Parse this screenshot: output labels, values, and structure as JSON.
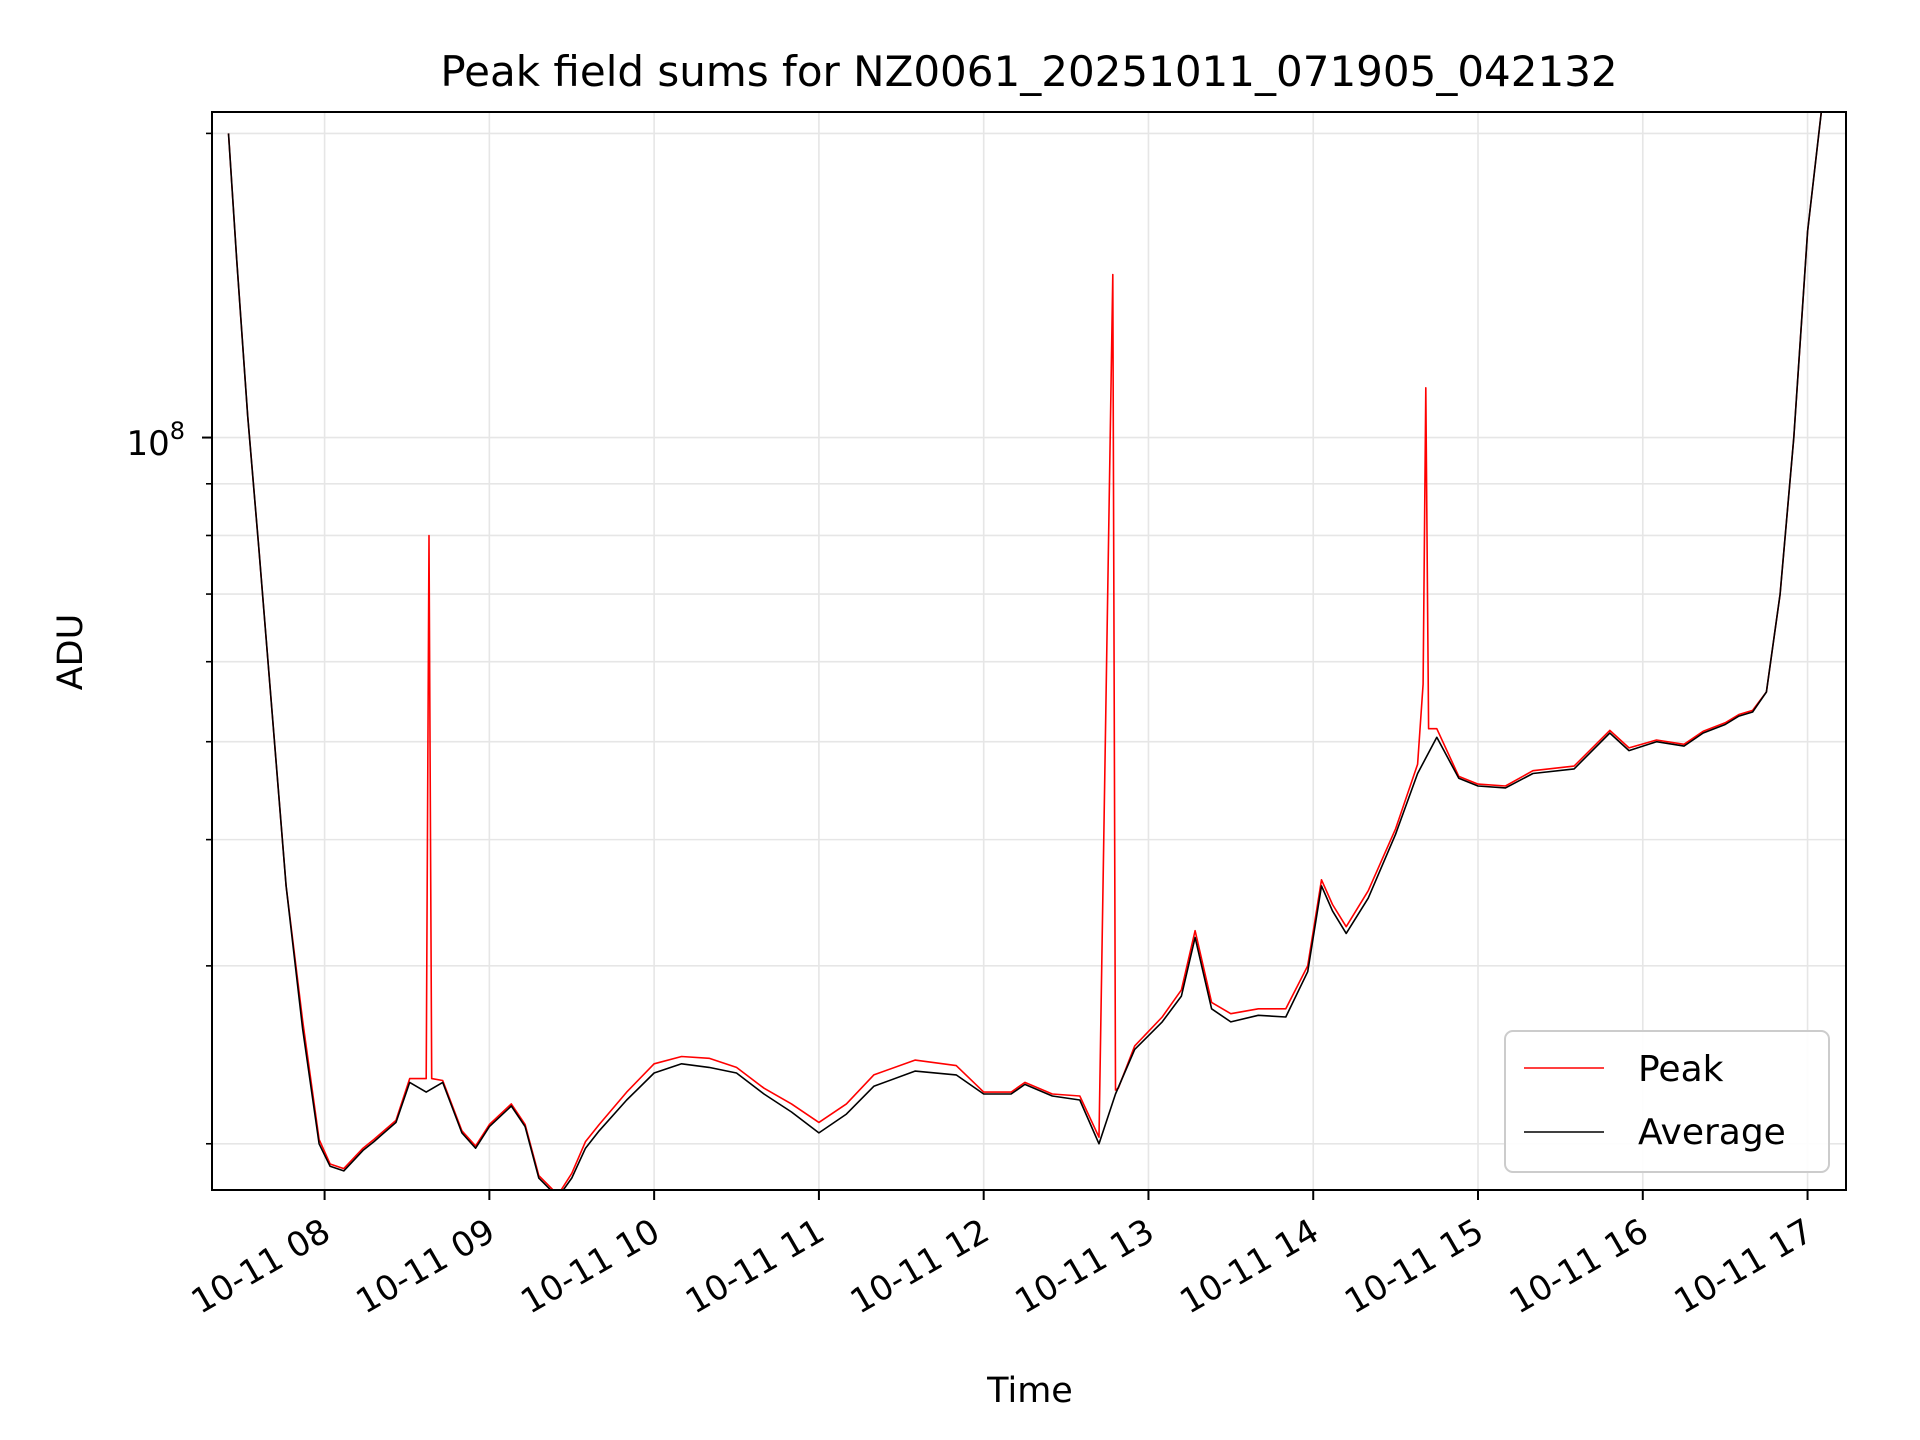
{
  "chart_data": {
    "type": "line",
    "title": "Peak field sums for NZ0061_20251011_071905_042132",
    "xlabel": "Time",
    "ylabel": "ADU",
    "y_scale": "log",
    "xlim": [
      "2025-10-11 07:19",
      "2025-10-11 17:14"
    ],
    "ylim": [
      18000000,
      210000000
    ],
    "x_tick_labels": [
      "10-11 08",
      "10-11 09",
      "10-11 10",
      "10-11 11",
      "10-11 12",
      "10-11 13",
      "10-11 14",
      "10-11 15",
      "10-11 16",
      "10-11 17"
    ],
    "x_ticks": [
      "2025-10-11 08:00",
      "2025-10-11 09:00",
      "2025-10-11 10:00",
      "2025-10-11 11:00",
      "2025-10-11 12:00",
      "2025-10-11 13:00",
      "2025-10-11 14:00",
      "2025-10-11 15:00",
      "2025-10-11 16:00",
      "2025-10-11 17:00"
    ],
    "y_major_tick_labels": [
      "10",
      "8"
    ],
    "y_major_ticks": [
      100000000
    ],
    "y_minor_ticks": [
      20000000,
      30000000,
      40000000,
      50000000,
      60000000,
      70000000,
      80000000,
      90000000,
      200000000
    ],
    "grid": true,
    "legend": "lower-right",
    "colors": {
      "peak": "#ff0000",
      "average": "#000000",
      "grid": "#e6e6e6"
    },
    "series": [
      {
        "name": "Average",
        "x": [
          "2025-10-11 07:25",
          "2025-10-11 07:28",
          "2025-10-11 07:32",
          "2025-10-11 07:36",
          "2025-10-11 07:41",
          "2025-10-11 07:46",
          "2025-10-11 07:52",
          "2025-10-11 07:58",
          "2025-10-11 08:02",
          "2025-10-11 08:07",
          "2025-10-11 08:14",
          "2025-10-11 08:18",
          "2025-10-11 08:26",
          "2025-10-11 08:31",
          "2025-10-11 08:37",
          "2025-10-11 08:43",
          "2025-10-11 08:50",
          "2025-10-11 08:55",
          "2025-10-11 09:00",
          "2025-10-11 09:08",
          "2025-10-11 09:13",
          "2025-10-11 09:18",
          "2025-10-11 09:25",
          "2025-10-11 09:30",
          "2025-10-11 09:35",
          "2025-10-11 09:40",
          "2025-10-11 09:50",
          "2025-10-11 10:00",
          "2025-10-11 10:10",
          "2025-10-11 10:20",
          "2025-10-11 10:30",
          "2025-10-11 10:40",
          "2025-10-11 10:50",
          "2025-10-11 11:00",
          "2025-10-11 11:10",
          "2025-10-11 11:20",
          "2025-10-11 11:35",
          "2025-10-11 11:50",
          "2025-10-11 12:00",
          "2025-10-11 12:10",
          "2025-10-11 12:15",
          "2025-10-11 12:25",
          "2025-10-11 12:35",
          "2025-10-11 12:42",
          "2025-10-11 12:48",
          "2025-10-11 12:55",
          "2025-10-11 13:05",
          "2025-10-11 13:12",
          "2025-10-11 13:17",
          "2025-10-11 13:23",
          "2025-10-11 13:30",
          "2025-10-11 13:40",
          "2025-10-11 13:50",
          "2025-10-11 13:58",
          "2025-10-11 14:03",
          "2025-10-11 14:07",
          "2025-10-11 14:12",
          "2025-10-11 14:20",
          "2025-10-11 14:30",
          "2025-10-11 14:38",
          "2025-10-11 14:45",
          "2025-10-11 14:53",
          "2025-10-11 15:00",
          "2025-10-11 15:10",
          "2025-10-11 15:20",
          "2025-10-11 15:35",
          "2025-10-11 15:48",
          "2025-10-11 15:55",
          "2025-10-11 16:05",
          "2025-10-11 16:15",
          "2025-10-11 16:22",
          "2025-10-11 16:30",
          "2025-10-11 16:35",
          "2025-10-11 16:40",
          "2025-10-11 16:45",
          "2025-10-11 16:50",
          "2025-10-11 16:55",
          "2025-10-11 17:00",
          "2025-10-11 17:05",
          "2025-10-11 17:10"
        ],
        "y": [
          200000000,
          150000000,
          105000000,
          78000000,
          53000000,
          36000000,
          26000000,
          20000000,
          19000000,
          18800000,
          19700000,
          20100000,
          21000000,
          23000000,
          22500000,
          23000000,
          20500000,
          19800000,
          20800000,
          21800000,
          20800000,
          18500000,
          17700000,
          18500000,
          19800000,
          20600000,
          22100000,
          23500000,
          24000000,
          23800000,
          23500000,
          22400000,
          21500000,
          20500000,
          21400000,
          22800000,
          23600000,
          23400000,
          22400000,
          22400000,
          22900000,
          22300000,
          22100000,
          20000000,
          22400000,
          24800000,
          26400000,
          28000000,
          32000000,
          27200000,
          26400000,
          26800000,
          26700000,
          29600000,
          36000000,
          34000000,
          32300000,
          35000000,
          40500000,
          46500000,
          50500000,
          46000000,
          45200000,
          45000000,
          46500000,
          47000000,
          51000000,
          49000000,
          50000000,
          49500000,
          51000000,
          52000000,
          53000000,
          53500000,
          56000000,
          70000000,
          100000000,
          160000000,
          210000000,
          210000000
        ]
      },
      {
        "name": "Peak",
        "x": [
          "2025-10-11 07:25",
          "2025-10-11 07:28",
          "2025-10-11 07:32",
          "2025-10-11 07:36",
          "2025-10-11 07:41",
          "2025-10-11 07:46",
          "2025-10-11 07:52",
          "2025-10-11 07:58",
          "2025-10-11 08:02",
          "2025-10-11 08:07",
          "2025-10-11 08:14",
          "2025-10-11 08:18",
          "2025-10-11 08:26",
          "2025-10-11 08:31",
          "2025-10-11 08:37",
          "2025-10-11 08:38",
          "2025-10-11 08:39",
          "2025-10-11 08:43",
          "2025-10-11 08:50",
          "2025-10-11 08:55",
          "2025-10-11 09:00",
          "2025-10-11 09:08",
          "2025-10-11 09:13",
          "2025-10-11 09:18",
          "2025-10-11 09:25",
          "2025-10-11 09:30",
          "2025-10-11 09:35",
          "2025-10-11 09:40",
          "2025-10-11 09:50",
          "2025-10-11 10:00",
          "2025-10-11 10:10",
          "2025-10-11 10:20",
          "2025-10-11 10:30",
          "2025-10-11 10:40",
          "2025-10-11 10:50",
          "2025-10-11 11:00",
          "2025-10-11 11:10",
          "2025-10-11 11:20",
          "2025-10-11 11:35",
          "2025-10-11 11:50",
          "2025-10-11 12:00",
          "2025-10-11 12:10",
          "2025-10-11 12:15",
          "2025-10-11 12:25",
          "2025-10-11 12:35",
          "2025-10-11 12:42",
          "2025-10-11 12:47",
          "2025-10-11 12:48",
          "2025-10-11 12:49",
          "2025-10-11 12:55",
          "2025-10-11 13:05",
          "2025-10-11 13:12",
          "2025-10-11 13:17",
          "2025-10-11 13:23",
          "2025-10-11 13:30",
          "2025-10-11 13:40",
          "2025-10-11 13:50",
          "2025-10-11 13:58",
          "2025-10-11 14:03",
          "2025-10-11 14:07",
          "2025-10-11 14:12",
          "2025-10-11 14:20",
          "2025-10-11 14:30",
          "2025-10-11 14:38",
          "2025-10-11 14:40",
          "2025-10-11 14:41",
          "2025-10-11 14:42",
          "2025-10-11 14:45",
          "2025-10-11 14:53",
          "2025-10-11 15:00",
          "2025-10-11 15:10",
          "2025-10-11 15:20",
          "2025-10-11 15:35",
          "2025-10-11 15:48",
          "2025-10-11 15:55",
          "2025-10-11 16:05",
          "2025-10-11 16:15",
          "2025-10-11 16:22",
          "2025-10-11 16:30",
          "2025-10-11 16:35",
          "2025-10-11 16:40",
          "2025-10-11 16:45",
          "2025-10-11 16:50",
          "2025-10-11 16:55",
          "2025-10-11 17:00",
          "2025-10-11 17:05",
          "2025-10-11 17:10"
        ],
        "y": [
          200000000,
          150000000,
          105000000,
          78000000,
          53000000,
          36000000,
          26500000,
          20200000,
          19100000,
          18900000,
          19800000,
          20200000,
          21100000,
          23200000,
          23200000,
          80000000,
          23200000,
          23100000,
          20600000,
          19900000,
          20900000,
          21900000,
          20900000,
          18600000,
          17800000,
          18700000,
          20100000,
          20900000,
          22500000,
          24000000,
          24400000,
          24300000,
          23800000,
          22700000,
          21900000,
          21000000,
          21900000,
          23400000,
          24200000,
          23900000,
          22500000,
          22500000,
          23000000,
          22400000,
          22300000,
          20300000,
          145000000,
          22600000,
          22700000,
          25000000,
          26700000,
          28400000,
          32500000,
          27600000,
          26900000,
          27200000,
          27200000,
          30000000,
          36500000,
          34500000,
          32800000,
          35600000,
          41000000,
          47500000,
          57000000,
          112000000,
          51500000,
          51500000,
          46200000,
          45400000,
          45200000,
          46800000,
          47300000,
          51300000,
          49300000,
          50200000,
          49700000,
          51200000,
          52200000,
          53200000,
          53700000,
          56000000,
          70000000,
          100000000,
          160000000,
          210000000,
          210000000
        ]
      }
    ]
  }
}
